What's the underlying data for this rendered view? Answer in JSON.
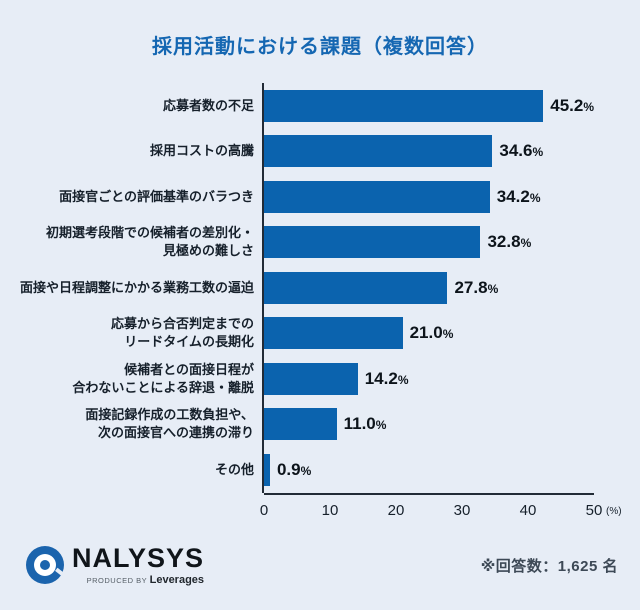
{
  "title": "採用活動における課題（複数回答）",
  "chart_data": {
    "type": "bar",
    "orientation": "horizontal",
    "title": "採用活動における課題（複数回答）",
    "categories": [
      "応募者数の不足",
      "採用コストの高騰",
      "面接官ごとの評価基準のバラつき",
      "初期選考段階での候補者の差別化・\n見極めの難しさ",
      "面接や日程調整にかかる業務工数の逼迫",
      "応募から合否判定までの\nリードタイムの長期化",
      "候補者との面接日程が\n合わないことによる辞退・離脱",
      "面接記録作成の工数負担や、\n次の面接官への連携の滞り",
      "その他"
    ],
    "values": [
      45.2,
      34.6,
      34.2,
      32.8,
      27.8,
      21.0,
      14.2,
      11.0,
      0.9
    ],
    "values_display": [
      "45.2",
      "34.6",
      "34.2",
      "32.8",
      "27.8",
      "21.0",
      "14.2",
      "11.0",
      "0.9"
    ],
    "unit": "%",
    "xlim": [
      0,
      50
    ],
    "xticks": [
      0,
      10,
      20,
      30,
      40,
      50
    ],
    "x_unit_label": "(%)",
    "bar_color": "#0b63ae",
    "grid": "off",
    "legend": "none"
  },
  "logo": {
    "name": "NALYSYS",
    "produced_by": "PRODUCED BY",
    "company": "Leverages"
  },
  "footer": {
    "note": "※回答数：1,625 名"
  },
  "colors": {
    "background": "#e7edf6",
    "bar": "#0b63ae",
    "title_text": "#1567b2",
    "axis": "#222b36",
    "label_text": "#16202b",
    "note_text": "#3d4956",
    "logo_blue": "#1b64ad"
  }
}
